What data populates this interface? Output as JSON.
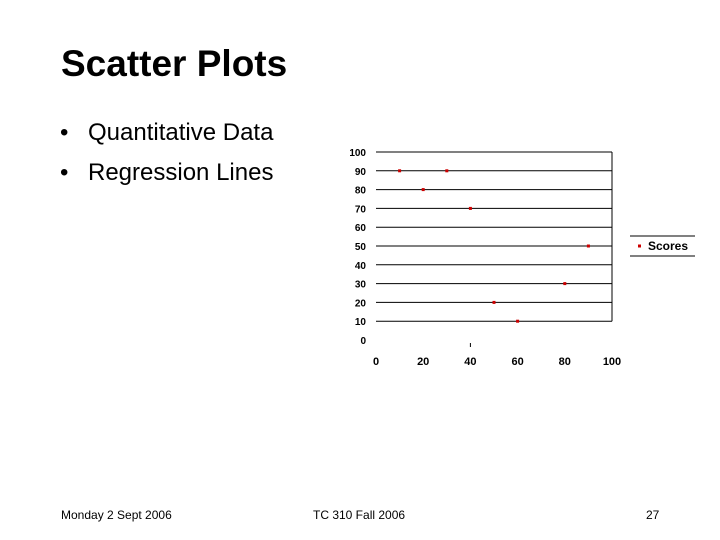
{
  "slide": {
    "title": "Scatter Plots",
    "bullet_marker": "•",
    "bullets": [
      "Quantitative Data",
      "Regression Lines"
    ]
  },
  "footer": {
    "date": "Monday 2 Sept 2006",
    "course": "TC 310 Fall 2006",
    "page": "27"
  },
  "chart_data": {
    "type": "scatter",
    "title": "",
    "xlabel": "",
    "ylabel": "",
    "xlim": [
      0,
      100
    ],
    "ylim": [
      0,
      100
    ],
    "x_ticks": [
      0,
      20,
      40,
      60,
      80,
      100
    ],
    "y_ticks": [
      0,
      10,
      20,
      30,
      40,
      50,
      60,
      70,
      80,
      90,
      100
    ],
    "grid": "horizontal",
    "legend_position": "right",
    "marker_color": "#cc0000",
    "series": [
      {
        "name": "Scores",
        "points": [
          {
            "x": 10,
            "y": 90
          },
          {
            "x": 20,
            "y": 80
          },
          {
            "x": 30,
            "y": 90
          },
          {
            "x": 40,
            "y": 70
          },
          {
            "x": 50,
            "y": 20
          },
          {
            "x": 60,
            "y": 10
          },
          {
            "x": 80,
            "y": 30
          },
          {
            "x": 90,
            "y": 50
          }
        ]
      }
    ]
  }
}
